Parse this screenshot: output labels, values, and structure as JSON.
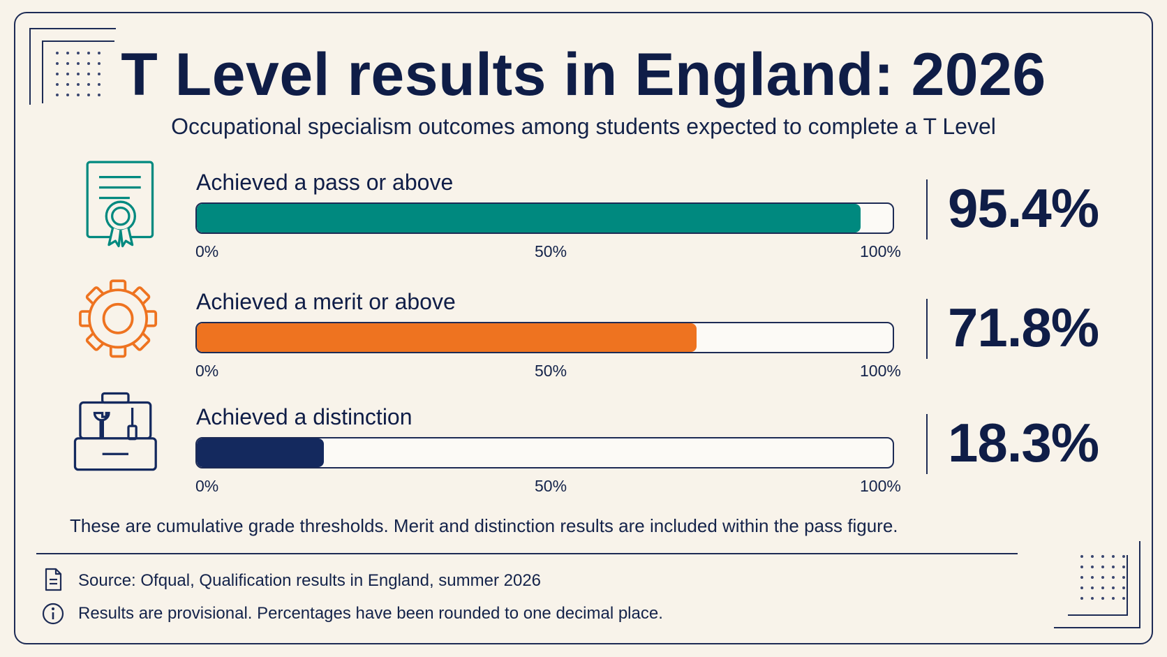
{
  "title": "T Level results in England: 2026",
  "subtitle": "Occupational specialism outcomes among students expected to complete a T Level",
  "chart_data": {
    "type": "bar",
    "orientation": "horizontal",
    "axis": {
      "min": 0,
      "max": 100,
      "unit": "%",
      "ticks": [
        "0%",
        "50%",
        "100%"
      ]
    },
    "grid": false,
    "bars": [
      {
        "label": "Achieved a pass or above",
        "value": 95.4,
        "value_label": "95.4%",
        "color": "#00897f",
        "icon": "certificate-icon"
      },
      {
        "label": "Achieved a merit or above",
        "value": 71.8,
        "value_label": "71.8%",
        "color": "#ee7320",
        "icon": "gear-icon"
      },
      {
        "label": "Achieved a distinction",
        "value": 18.3,
        "value_label": "18.3%",
        "color": "#14295e",
        "icon": "toolbox-icon"
      }
    ]
  },
  "note": "These are cumulative grade thresholds. Merit and distinction results are included within the pass figure.",
  "footer": {
    "source": "Source: Ofqual, Qualification results in England, summer 2026",
    "source_icon": "document-icon",
    "disclaimer": "Results are provisional. Percentages have been rounded to one decimal place.",
    "disclaimer_icon": "info-icon"
  },
  "colors": {
    "background": "#f8f3ea",
    "ink": "#0f1d47",
    "frame": "#1d2b55"
  }
}
